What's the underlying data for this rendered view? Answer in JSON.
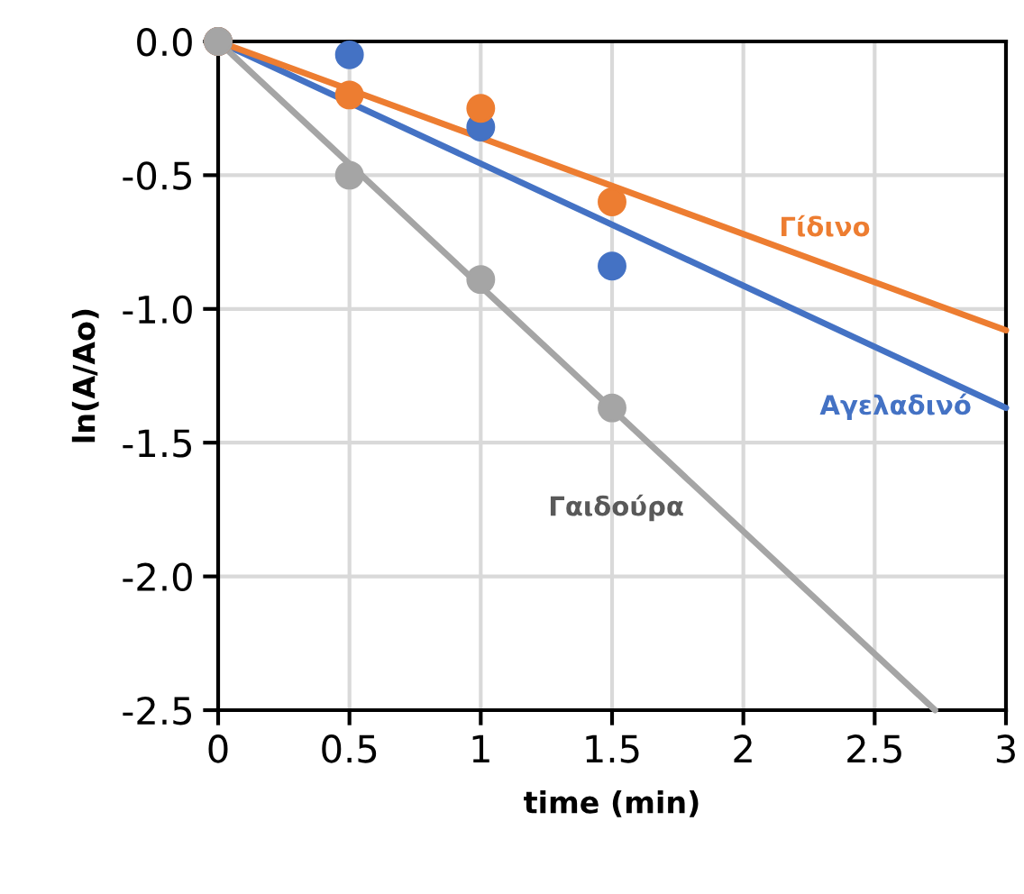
{
  "chart_data": {
    "type": "scatter",
    "xlabel": "time (min)",
    "ylabel": "ln(A/Ao)",
    "x": [
      0,
      0.5,
      1,
      1.5
    ],
    "series": [
      {
        "color": "#4472c4",
        "values": [
          0,
          -0.05,
          -0.32,
          -0.84
        ],
        "marker": "circle"
      },
      {
        "color": "#ed7d31",
        "values": [
          0,
          -0.2,
          -0.25,
          -0.6
        ],
        "marker": "circle"
      },
      {
        "color": "#a5a5a5",
        "values": [
          0,
          -0.5,
          -0.89,
          -1.37
        ],
        "marker": "circle"
      },
      {
        "type": "line",
        "name": "Αγελαδινό",
        "color": "#4472c4",
        "x": [
          0,
          3
        ],
        "values": [
          0,
          -1.37
        ],
        "marker": "none"
      },
      {
        "type": "line",
        "name": "Γίδινο",
        "color": "#ed7d31",
        "x": [
          0,
          3
        ],
        "values": [
          0,
          -1.08
        ],
        "marker": "none"
      },
      {
        "type": "line",
        "name": "Γαιδούρα",
        "color": "#a5a5a5",
        "x": [
          0,
          2.73
        ],
        "values": [
          0,
          -2.5
        ],
        "marker": "none"
      }
    ],
    "xlim": [
      0,
      3
    ],
    "xticks": [
      0,
      0.5,
      1,
      1.5,
      2,
      2.5,
      3
    ],
    "ylim": [
      -2.5,
      0
    ],
    "yticks": [
      {
        "value": -2.5,
        "label": "-2.5"
      },
      {
        "value": -2.0,
        "label": "-2.0"
      },
      {
        "value": -1.5,
        "label": "-1.5"
      },
      {
        "value": -1.0,
        "label": "-1.0"
      },
      {
        "value": -0.5,
        "label": "-0.5"
      },
      {
        "value": 0,
        "label": "0.0"
      }
    ],
    "grid": true,
    "legend": false
  }
}
